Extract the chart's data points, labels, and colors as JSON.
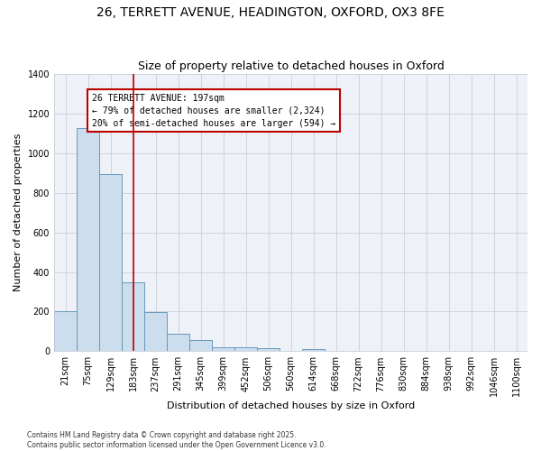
{
  "title_line1": "26, TERRETT AVENUE, HEADINGTON, OXFORD, OX3 8FE",
  "title_line2": "Size of property relative to detached houses in Oxford",
  "xlabel": "Distribution of detached houses by size in Oxford",
  "ylabel": "Number of detached properties",
  "bin_labels": [
    "21sqm",
    "75sqm",
    "129sqm",
    "183sqm",
    "237sqm",
    "291sqm",
    "345sqm",
    "399sqm",
    "452sqm",
    "506sqm",
    "560sqm",
    "614sqm",
    "668sqm",
    "722sqm",
    "776sqm",
    "830sqm",
    "884sqm",
    "938sqm",
    "992sqm",
    "1046sqm",
    "1100sqm"
  ],
  "bar_values": [
    200,
    1125,
    895,
    350,
    197,
    90,
    55,
    22,
    20,
    15,
    0,
    12,
    0,
    0,
    0,
    0,
    0,
    0,
    0,
    0,
    0
  ],
  "bar_color": "#ccdded",
  "bar_edgecolor": "#6699bb",
  "vline_x": 3.0,
  "vline_color": "#bb0000",
  "annotation_line1": "26 TERRETT AVENUE: 197sqm",
  "annotation_line2": "← 79% of detached houses are smaller (2,324)",
  "annotation_line3": "20% of semi-detached houses are larger (594) →",
  "annotation_box_color": "#bb0000",
  "ylim": [
    0,
    1400
  ],
  "yticks": [
    0,
    200,
    400,
    600,
    800,
    1000,
    1200,
    1400
  ],
  "footer_text": "Contains HM Land Registry data © Crown copyright and database right 2025.\nContains public sector information licensed under the Open Government Licence v3.0.",
  "bg_color": "#eef2f8",
  "grid_color": "#c8cdd8",
  "title_fontsize": 10,
  "subtitle_fontsize": 9,
  "axis_label_fontsize": 8,
  "tick_fontsize": 7,
  "annotation_fontsize": 7
}
